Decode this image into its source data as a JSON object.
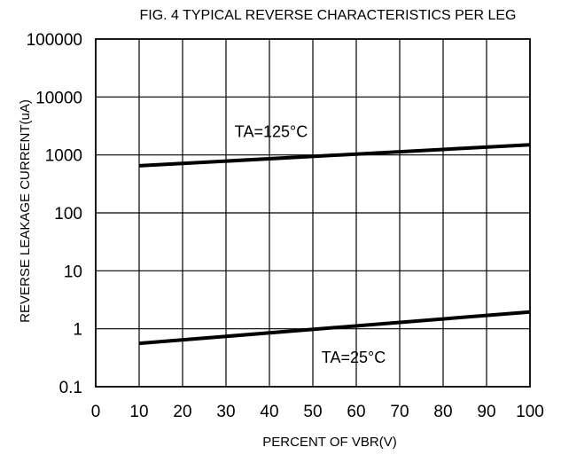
{
  "chart_data": {
    "type": "line",
    "title": "FIG. 4 TYPICAL REVERSE CHARACTERISTICS PER LEG",
    "xlabel": "PERCENT OF VBR(V)",
    "ylabel": "REVERSE LEAKAGE CURRENT(uA)",
    "xlim": [
      0,
      100
    ],
    "ylim": [
      0.1,
      100000
    ],
    "yscale": "log",
    "grid": true,
    "x_ticks": [
      "0",
      "10",
      "20",
      "30",
      "40",
      "50",
      "60",
      "70",
      "80",
      "90",
      "100"
    ],
    "y_ticks": [
      "0.1",
      "1",
      "10",
      "100",
      "1000",
      "10000",
      "100000"
    ],
    "series": [
      {
        "name": "TA=125°C",
        "x": [
          10,
          100
        ],
        "y": [
          650,
          1500
        ],
        "color": "#000000"
      },
      {
        "name": "TA=25°C",
        "x": [
          10,
          100
        ],
        "y": [
          0.56,
          1.95
        ],
        "color": "#000000"
      }
    ],
    "annotations": [
      {
        "text": "TA=125°C",
        "x": 32,
        "y": 2500
      },
      {
        "text": "TA=25°C",
        "x": 52,
        "y": 0.32
      }
    ]
  }
}
